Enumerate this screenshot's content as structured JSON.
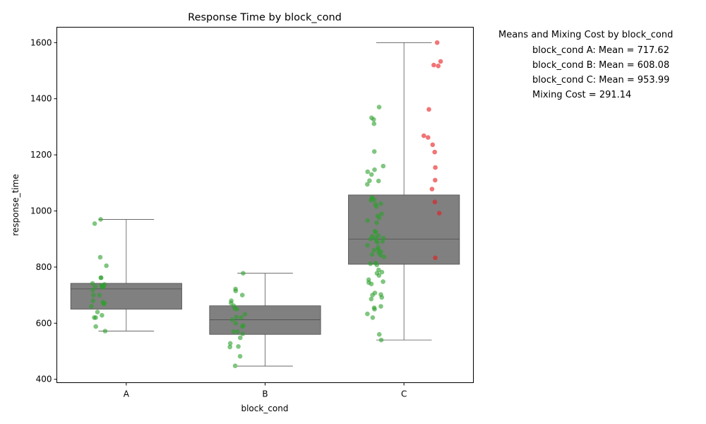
{
  "chart_data": {
    "type": "box",
    "title": "Response Time by block_cond",
    "xlabel": "block_cond",
    "ylabel": "response_time",
    "categories": [
      "A",
      "B",
      "C"
    ],
    "ylim": [
      388,
      1655
    ],
    "yticks": [
      400,
      600,
      800,
      1000,
      1200,
      1400,
      1600
    ],
    "grid": false,
    "box_color": "#808080",
    "boxes": [
      {
        "category": "A",
        "q1": 650,
        "median": 722,
        "q3": 742,
        "whisker_low": 572,
        "whisker_high": 970
      },
      {
        "category": "B",
        "q1": 560,
        "median": 612,
        "q3": 662,
        "whisker_low": 447,
        "whisker_high": 778
      },
      {
        "category": "C",
        "q1": 810,
        "median": 900,
        "q3": 1057,
        "whisker_low": 540,
        "whisker_high": 1600
      }
    ],
    "points": [
      {
        "category": "A",
        "color": "#2ca02c",
        "values": [
          970,
          955,
          835,
          805,
          762,
          762,
          742,
          738,
          734,
          732,
          730,
          730,
          728,
          718,
          700,
          700,
          680,
          675,
          672,
          668,
          660,
          640,
          628,
          620,
          620,
          588,
          572
        ]
      },
      {
        "category": "B",
        "color": "#2ca02c",
        "values": [
          778,
          722,
          715,
          700,
          680,
          672,
          662,
          652,
          650,
          632,
          622,
          620,
          612,
          600,
          592,
          588,
          570,
          570,
          562,
          548,
          528,
          517,
          515,
          482,
          448
        ]
      },
      {
        "category": "C",
        "color": "#2ca02c",
        "values": [
          1370,
          1332,
          1326,
          1311,
          1212,
          1160,
          1147,
          1140,
          1130,
          1108,
          1107,
          1095,
          1048,
          1044,
          1040,
          1038,
          1026,
          1024,
          1016,
          990,
          982,
          976,
          966,
          958,
          928,
          924,
          912,
          910,
          905,
          903,
          900,
          895,
          892,
          888,
          878,
          870,
          862,
          860,
          855,
          850,
          845,
          842,
          836,
          815,
          812,
          808,
          790,
          782,
          778,
          770,
          755,
          748,
          745,
          740,
          708,
          702,
          700,
          692,
          686,
          660,
          655,
          650,
          633,
          620,
          560,
          540
        ]
      },
      {
        "category": "C",
        "color": "#e8191b",
        "values": [
          1600,
          1533,
          1520,
          1517,
          1362,
          1268,
          1262,
          1236,
          1210,
          1155,
          1110,
          1078,
          1032,
          992,
          833
        ]
      }
    ],
    "summary": {
      "title": "Means and Mixing Cost by block_cond",
      "lines": [
        "block_cond A: Mean = 717.62",
        "block_cond B: Mean = 608.08",
        "block_cond C: Mean = 953.99",
        "Mixing Cost = 291.14"
      ],
      "means": {
        "A": 717.62,
        "B": 608.08,
        "C": 953.99
      },
      "mixing_cost": 291.14
    }
  }
}
